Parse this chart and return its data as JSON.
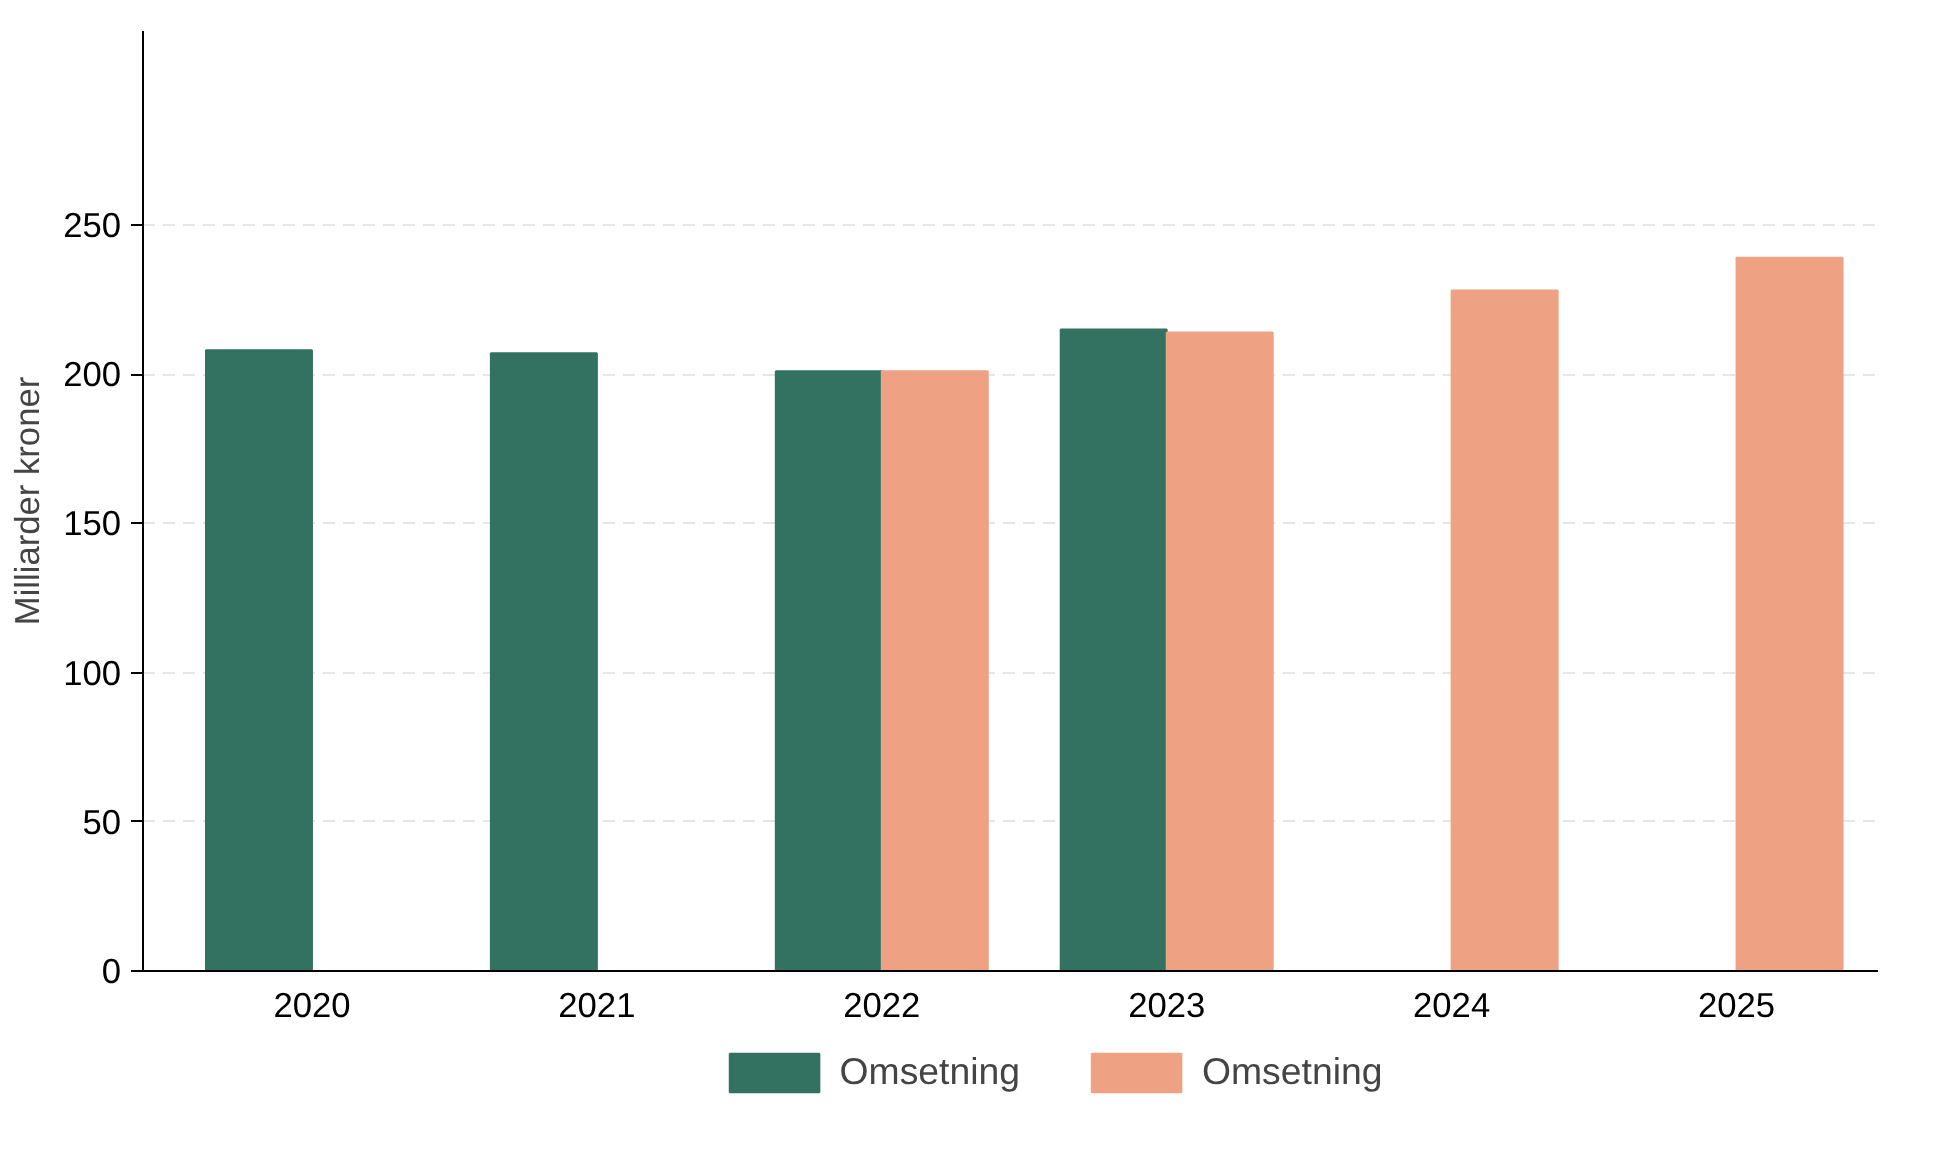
{
  "chart_data": {
    "type": "bar",
    "ylabel": "Milliarder kroner",
    "categories": [
      "2020",
      "2021",
      "2022",
      "2023",
      "2024",
      "2025"
    ],
    "series": [
      {
        "name": "Omsetning",
        "color": "#337260",
        "values": [
          208,
          207,
          201,
          215,
          null,
          null
        ]
      },
      {
        "name": "Omsetning",
        "color": "#eea283",
        "values": [
          null,
          null,
          201,
          214,
          228,
          239
        ]
      }
    ],
    "ylim": [
      0,
      315
    ],
    "yticks": [
      0,
      50,
      100,
      150,
      200,
      250
    ],
    "grid": "y",
    "legend": "bottom"
  }
}
